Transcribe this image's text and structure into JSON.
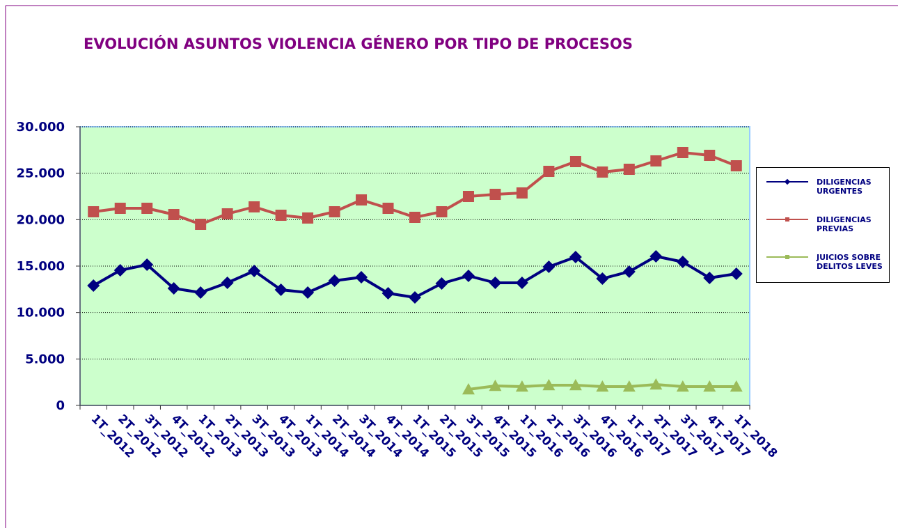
{
  "chart_data": {
    "type": "line",
    "title": "EVOLUCIÓN ASUNTOS VIOLENCIA GÉNERO POR TIPO DE PROCESOS",
    "categories": [
      "1T_2012",
      "2T_2012",
      "3T_2012",
      "4T_2012",
      "1T_2013",
      "2T_2013",
      "3T_2013",
      "4T_2013",
      "1T_2014",
      "2T_2014",
      "3T_2014",
      "4T_2014",
      "1T_2015",
      "2T_2015",
      "3T_2015",
      "4T_2015",
      "1T_2016",
      "2T_2016",
      "3T_2016",
      "4T_2016",
      "1T_2017",
      "2T_2017",
      "3T_2017",
      "4T_2017",
      "1T_2018"
    ],
    "series": [
      {
        "name": "DILIGENCIAS URGENTES",
        "color": "#000080",
        "marker": "diamond",
        "values": [
          12900,
          14550,
          15150,
          12600,
          12150,
          13200,
          14475,
          12450,
          12150,
          13425,
          13800,
          12075,
          11625,
          13125,
          13950,
          13200,
          13200,
          14925,
          15975,
          13650,
          14400,
          16050,
          15450,
          13725,
          14175
        ]
      },
      {
        "name": "DILIGENCIAS PREVIAS",
        "color": "#c0504d",
        "marker": "square",
        "values": [
          20850,
          21225,
          21225,
          20550,
          19500,
          20625,
          21375,
          20475,
          20175,
          20850,
          22125,
          21225,
          20250,
          20850,
          22500,
          22725,
          22875,
          25200,
          26250,
          25125,
          25425,
          26325,
          27225,
          26925,
          25800
        ]
      },
      {
        "name": "JUICIOS SOBRE DELITOS LEVES",
        "color": "#9bbb59",
        "marker": "triangle",
        "values": [
          null,
          null,
          null,
          null,
          null,
          null,
          null,
          null,
          null,
          null,
          null,
          null,
          null,
          null,
          1725,
          2100,
          2025,
          2175,
          2175,
          2025,
          2025,
          2250,
          2025,
          2025,
          2025
        ]
      }
    ],
    "ylim": [
      0,
      30000
    ],
    "yticks": [
      0,
      {
        "value": 5000,
        "label": "5.000"
      },
      {
        "value": 10000,
        "label": "10.000"
      },
      {
        "value": 15000,
        "label": "15.000"
      },
      {
        "value": 20000,
        "label": "20.000"
      },
      {
        "value": 25000,
        "label": "25.000"
      },
      {
        "value": 30000,
        "label": "30.000"
      }
    ],
    "grid": true,
    "legend": "right",
    "background": "#ccffcc"
  }
}
